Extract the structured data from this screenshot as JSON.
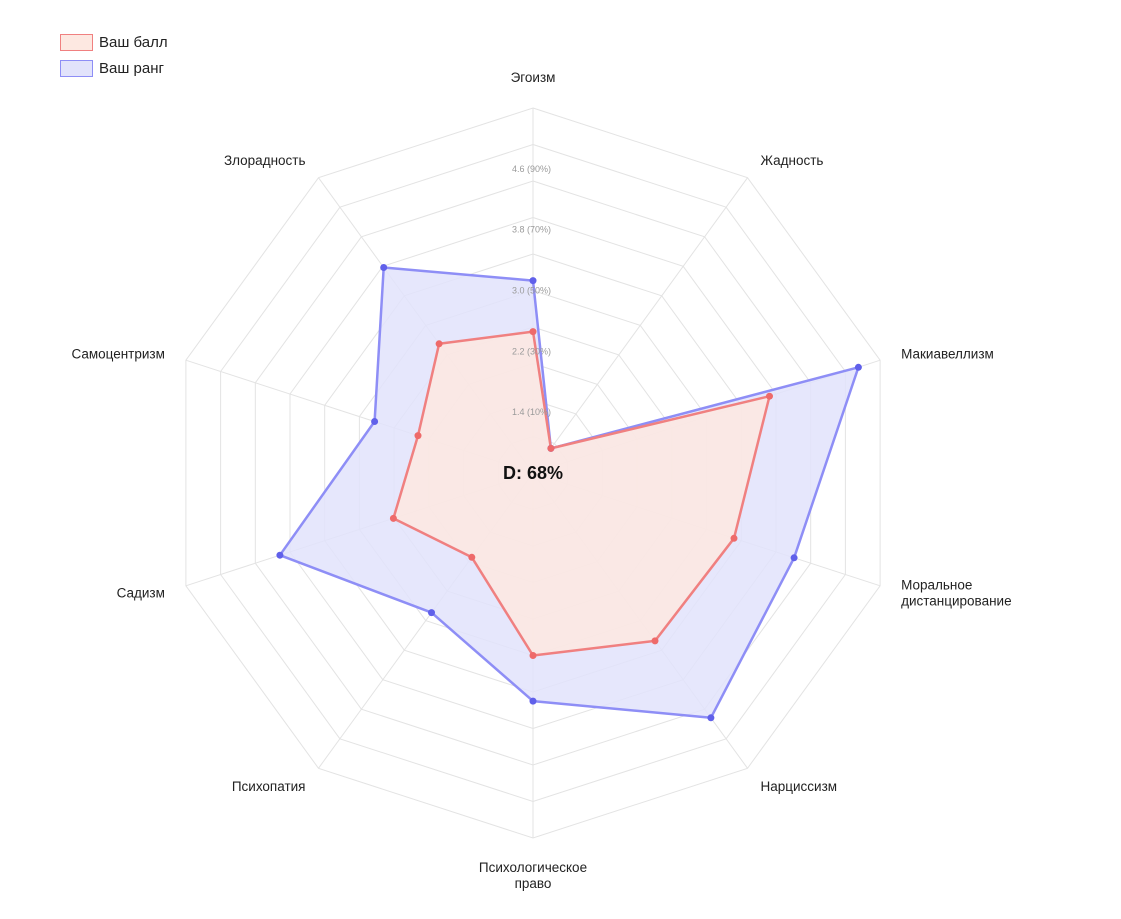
{
  "chart_data": {
    "type": "radar",
    "axes": [
      [
        "Эгоизм"
      ],
      [
        "Жадность"
      ],
      [
        "Макиавеллизм"
      ],
      [
        "Моральное",
        "дистанцирование"
      ],
      [
        "Нарциссизм"
      ],
      [
        "Психологическое",
        "право"
      ],
      [
        "Психопатия"
      ],
      [
        "Садизм"
      ],
      [
        "Самоцентризм"
      ],
      [
        "Злорадность"
      ]
    ],
    "rlim": [
      0.6,
      5.4
    ],
    "ticks": [
      {
        "value": 1.4,
        "label": "1.4  (10%)"
      },
      {
        "value": 2.2,
        "label": "2.2  (30%)"
      },
      {
        "value": 3.0,
        "label": "3.0  (50%)"
      },
      {
        "value": 3.8,
        "label": "3.8  (70%)"
      },
      {
        "value": 4.6,
        "label": "4.6  (90%)"
      }
    ],
    "grid": true,
    "legend_position": "top-left",
    "center_text": "D: 68%",
    "series": [
      {
        "name": "Ваш балл",
        "stroke": "#f08080",
        "fill": "#fde8e1",
        "point": "#ee6a6a",
        "values": [
          2.46,
          1.0,
          3.87,
          3.38,
          3.33,
          3.0,
          1.97,
          2.53,
          2.19,
          2.7
        ]
      },
      {
        "name": "Ваш ранг",
        "stroke": "#8e8ef6",
        "fill": "#e2e3fb",
        "point": "#6060ea",
        "values": [
          3.13,
          1.0,
          5.1,
          4.21,
          4.58,
          3.6,
          2.87,
          4.1,
          2.79,
          3.94
        ]
      }
    ]
  }
}
